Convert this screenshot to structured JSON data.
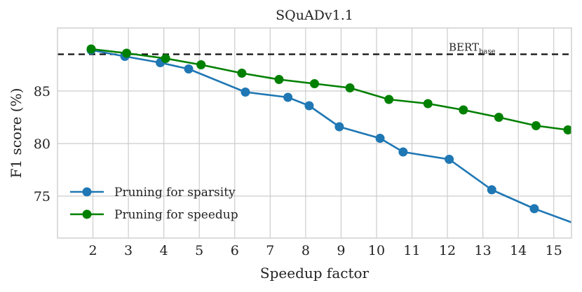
{
  "chart_data": {
    "type": "line",
    "title": "SQuADv1.1",
    "xlabel": "Speedup factor",
    "ylabel": "F1 score (%)",
    "xlim": [
      1.0,
      15.5
    ],
    "ylim": [
      71.0,
      91.0
    ],
    "xticks": [
      2,
      3,
      4,
      5,
      6,
      7,
      8,
      9,
      10,
      11,
      12,
      13,
      14,
      15
    ],
    "yticks": [
      75,
      80,
      85
    ],
    "grid": true,
    "legend": "lower-left",
    "reference_line": {
      "label": "BERT",
      "label_sub": "base",
      "value": 88.5,
      "style": "dashed",
      "color": "#111111"
    },
    "series": [
      {
        "name": "Pruning for sparsity",
        "color": "#1f77b4",
        "x": [
          1.95,
          2.9,
          3.9,
          4.7,
          6.3,
          7.5,
          8.1,
          8.95,
          10.1,
          10.75,
          12.05,
          13.25,
          14.45,
          15.5
        ],
        "y": [
          88.9,
          88.3,
          87.7,
          87.1,
          84.9,
          84.4,
          83.6,
          81.6,
          80.5,
          79.2,
          78.5,
          75.6,
          73.8,
          72.5
        ],
        "markers": [
          true,
          true,
          true,
          true,
          true,
          true,
          true,
          true,
          true,
          true,
          true,
          true,
          true,
          false
        ]
      },
      {
        "name": "Pruning for speedup",
        "color": "#008000",
        "x": [
          1.95,
          2.95,
          4.05,
          5.05,
          6.2,
          7.25,
          8.25,
          9.25,
          10.35,
          11.45,
          12.45,
          13.45,
          14.5,
          15.4
        ],
        "y": [
          89.0,
          88.6,
          88.1,
          87.5,
          86.7,
          86.1,
          85.7,
          85.3,
          84.2,
          83.8,
          83.2,
          82.5,
          81.7,
          81.3
        ],
        "markers": [
          true,
          true,
          true,
          true,
          true,
          true,
          true,
          true,
          true,
          true,
          true,
          true,
          true,
          true
        ]
      }
    ]
  }
}
